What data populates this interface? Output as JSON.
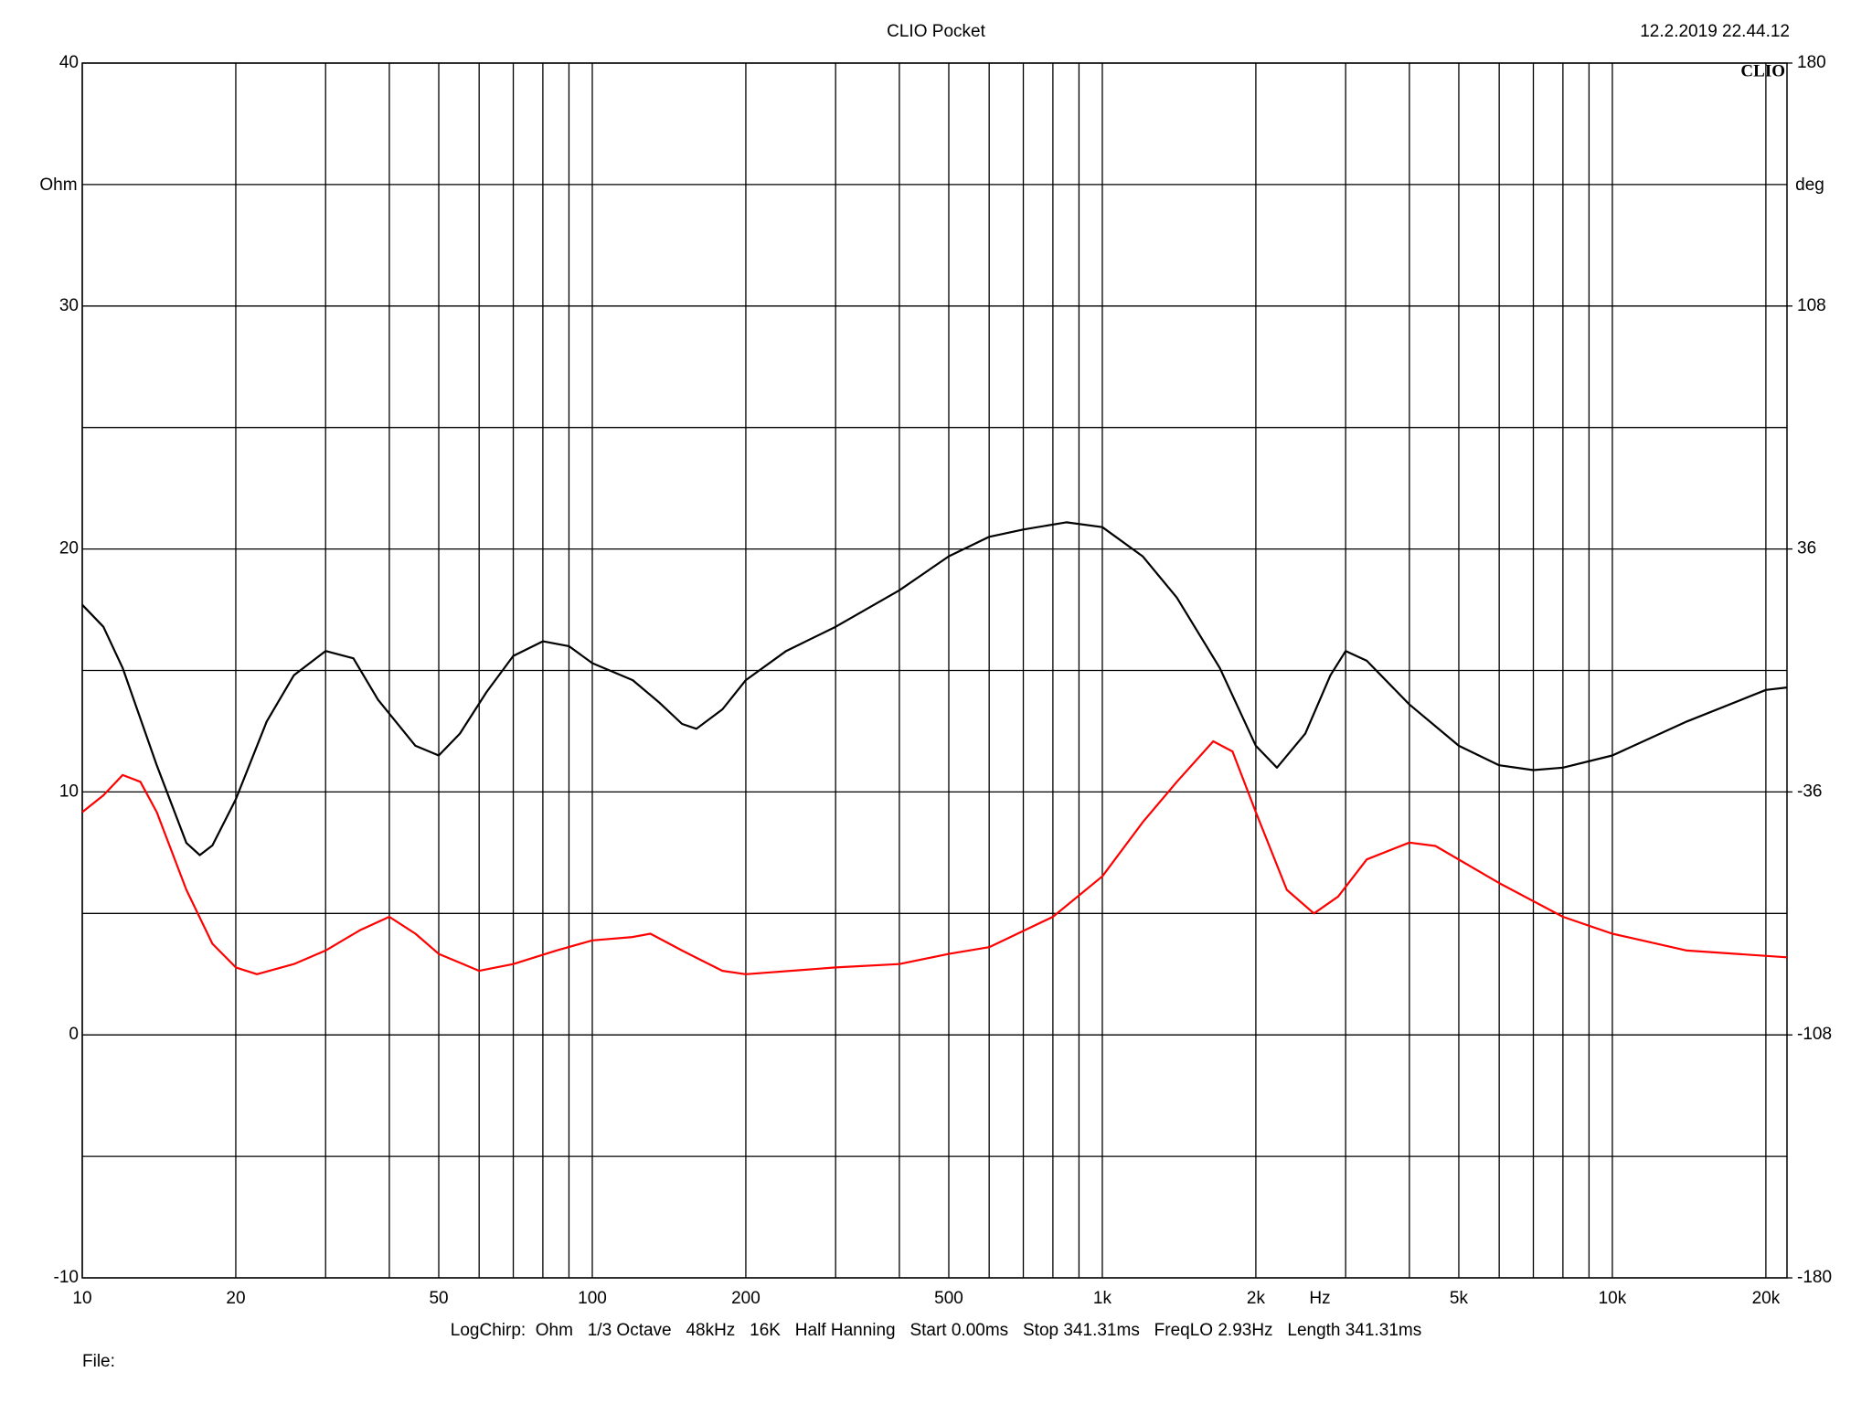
{
  "chart_data": {
    "type": "line",
    "title": "CLIO Pocket",
    "timestamp": "12.2.2019 22.44.12",
    "logo": "CLIO",
    "ylabel": "Ohm",
    "y2label": "deg",
    "xlabel": "Hz",
    "footer": "LogChirp:  Ohm   1/3 Octave   48kHz   16K   Half Hanning   Start 0.00ms   Stop 341.31ms   FreqLO 2.93Hz   Length 341.31ms",
    "file_label": "File:",
    "xscale": "log",
    "xlim": [
      10,
      22000
    ],
    "xticks": [
      10,
      20,
      50,
      100,
      200,
      500,
      {
        "value": 1000,
        "label": "1k"
      },
      {
        "value": 2000,
        "label": "2k"
      },
      {
        "value": 5000,
        "label": "5k"
      },
      {
        "value": 10000,
        "label": "10k"
      },
      {
        "value": 20000,
        "label": "20k"
      }
    ],
    "x_minor_ticks": [
      30,
      40,
      60,
      70,
      80,
      90,
      300,
      400,
      600,
      700,
      800,
      900,
      3000,
      4000,
      6000,
      7000,
      8000,
      9000
    ],
    "ylim": [
      -10,
      40
    ],
    "yticks": [
      -10,
      0,
      10,
      20,
      30,
      40
    ],
    "y_minor_ticks": [
      -5,
      5,
      15,
      25,
      35
    ],
    "y2lim": [
      -180,
      180
    ],
    "y2ticks": [
      -180,
      -108,
      -36,
      36,
      108,
      180
    ],
    "grid": true,
    "series": [
      {
        "color": "#000000",
        "x": [
          10,
          11,
          12,
          14,
          16,
          17,
          18,
          20,
          23,
          26,
          30,
          34,
          38,
          45,
          50,
          55,
          62,
          70,
          80,
          90,
          100,
          120,
          135,
          150,
          160,
          180,
          200,
          240,
          300,
          400,
          500,
          600,
          700,
          850,
          1000,
          1200,
          1400,
          1700,
          2000,
          2200,
          2500,
          2800,
          3000,
          3300,
          4000,
          5000,
          6000,
          7000,
          8000,
          10000,
          14000,
          20000,
          22000
        ],
        "values": [
          17.7,
          16.8,
          15.1,
          11.1,
          7.9,
          7.4,
          7.8,
          9.7,
          12.9,
          14.8,
          15.8,
          15.5,
          13.8,
          11.9,
          11.5,
          12.4,
          14.1,
          15.6,
          16.2,
          16.0,
          15.3,
          14.6,
          13.7,
          12.8,
          12.6,
          13.4,
          14.6,
          15.8,
          16.8,
          18.3,
          19.7,
          20.5,
          20.8,
          21.1,
          20.9,
          19.7,
          18.0,
          15.1,
          11.9,
          11.0,
          12.4,
          14.8,
          15.8,
          15.4,
          13.6,
          11.9,
          11.1,
          10.9,
          11.0,
          11.5,
          12.9,
          14.2,
          14.3
        ]
      },
      {
        "color": "#ff0000",
        "axis": "y2",
        "x": [
          10,
          11,
          12,
          13,
          14,
          16,
          18,
          20,
          22,
          26,
          30,
          35,
          40,
          45,
          50,
          60,
          70,
          85,
          100,
          120,
          130,
          150,
          180,
          200,
          300,
          400,
          500,
          600,
          800,
          1000,
          1200,
          1400,
          1650,
          1800,
          2000,
          2300,
          2600,
          2900,
          3300,
          4000,
          4500,
          6000,
          8000,
          10000,
          14000,
          22000
        ],
        "values": [
          -42,
          -37,
          -31,
          -33,
          -42,
          -65,
          -81,
          -88,
          -90,
          -87,
          -83,
          -77,
          -73,
          -78,
          -84,
          -89,
          -87,
          -83,
          -80,
          -79,
          -78,
          -83,
          -89,
          -90,
          -88,
          -87,
          -84,
          -82,
          -73,
          -61,
          -45,
          -33,
          -21,
          -24,
          -42,
          -65,
          -72,
          -67,
          -56,
          -51,
          -52,
          -63,
          -73,
          -78,
          -83,
          -85
        ]
      }
    ]
  }
}
